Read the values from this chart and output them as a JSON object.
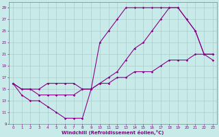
{
  "xlabel": "Windchill (Refroidissement éolien,°C)",
  "xlim": [
    -0.5,
    23.5
  ],
  "ylim": [
    9,
    30
  ],
  "xticks": [
    0,
    1,
    2,
    3,
    4,
    5,
    6,
    7,
    8,
    9,
    10,
    11,
    12,
    13,
    14,
    15,
    16,
    17,
    18,
    19,
    20,
    21,
    22,
    23
  ],
  "yticks": [
    9,
    11,
    13,
    15,
    17,
    19,
    21,
    23,
    25,
    27,
    29
  ],
  "bg_color": "#c8eae8",
  "grid_color": "#aacece",
  "line_color": "#880088",
  "line1_x": [
    0,
    1,
    2,
    3,
    4,
    5,
    6,
    7,
    8,
    9,
    10,
    11,
    12,
    13,
    14,
    15,
    16,
    17,
    18,
    19,
    20,
    21,
    22,
    23
  ],
  "line1_y": [
    16,
    14,
    13,
    13,
    12,
    11,
    10,
    10,
    10,
    15,
    23,
    25,
    27,
    29,
    29,
    29,
    29,
    29,
    29,
    29,
    27,
    25,
    21,
    21
  ],
  "line2_x": [
    0,
    1,
    2,
    3,
    4,
    5,
    6,
    7,
    8,
    9,
    10,
    11,
    12,
    13,
    14,
    15,
    16,
    17,
    18,
    19,
    20,
    21,
    22,
    23
  ],
  "line2_y": [
    16,
    15,
    15,
    15,
    16,
    16,
    16,
    16,
    15,
    15,
    16,
    17,
    18,
    20,
    22,
    23,
    25,
    27,
    29,
    29,
    27,
    25,
    21,
    20
  ],
  "line3_x": [
    0,
    1,
    2,
    3,
    4,
    5,
    6,
    7,
    8,
    9,
    10,
    11,
    12,
    13,
    14,
    15,
    16,
    17,
    18,
    19,
    20,
    21,
    22,
    23
  ],
  "line3_y": [
    16,
    15,
    15,
    14,
    14,
    14,
    14,
    14,
    15,
    15,
    16,
    16,
    17,
    17,
    18,
    18,
    18,
    19,
    20,
    20,
    20,
    21,
    21,
    21
  ]
}
